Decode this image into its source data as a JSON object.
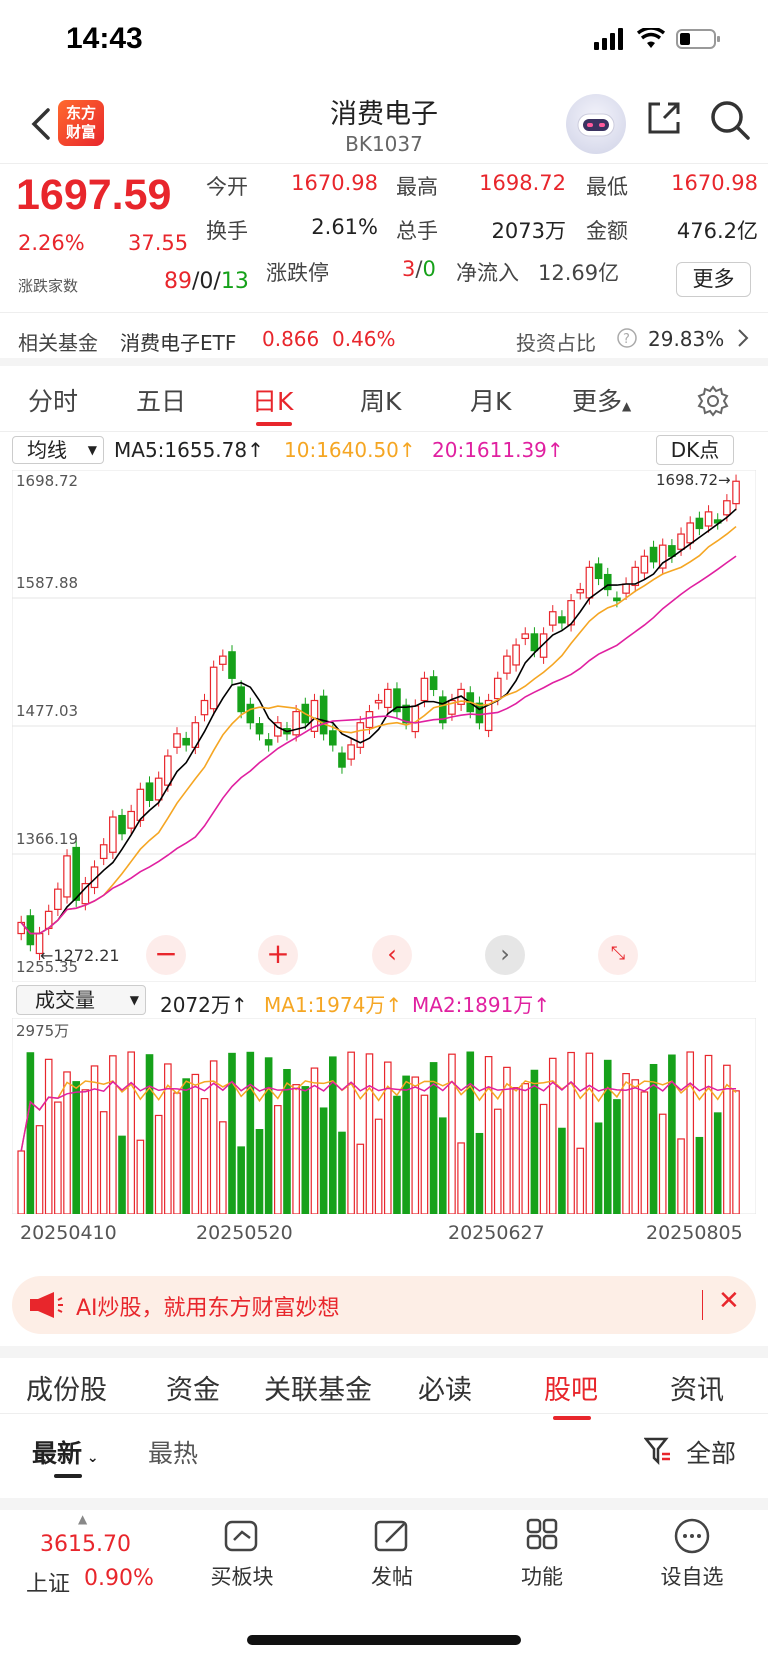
{
  "status": {
    "time": "14:43"
  },
  "nav": {
    "title": "消费电子",
    "code": "BK1037",
    "logo_line1": "东方",
    "logo_line2": "财富"
  },
  "quote": {
    "price": "1697.59",
    "change_pct": "2.26%",
    "change": "37.55",
    "open_label": "今开",
    "open": "1670.98",
    "high_label": "最高",
    "high": "1698.72",
    "low_label": "最低",
    "low": "1670.98",
    "turnover_label": "换手",
    "turnover": "2.61%",
    "volume_label": "总手",
    "volume": "2073万",
    "amount_label": "金额",
    "amount": "476.2亿",
    "updown_label": "涨跌家数",
    "up_count": "89",
    "flat_count": "0",
    "down_count": "13",
    "limit_label": "涨跌停",
    "limit_up": "3",
    "limit_down": "0",
    "inflow_label": "净流入",
    "inflow": "12.69亿",
    "more": "更多"
  },
  "fund": {
    "label": "相关基金",
    "name": "消费电子ETF",
    "price": "0.866",
    "pct": "0.46%",
    "ratio_label": "投资占比",
    "ratio": "29.83%"
  },
  "tabs": [
    "分时",
    "五日",
    "日K",
    "周K",
    "月K",
    "更多"
  ],
  "ma": {
    "select": "均线",
    "ma5": "MA5:1655.78",
    "ma10": "10:1640.50",
    "ma20": "20:1611.39",
    "dk": "DK点"
  },
  "chart_axis": {
    "y1": "1698.72",
    "y2": "1587.88",
    "y3": "1477.03",
    "y4": "1366.19",
    "y5": "1255.35",
    "max_label": "1698.72",
    "min_label": "1272.21"
  },
  "vol": {
    "select": "成交量",
    "value": "2072万",
    "ma1": "MA1:1974万",
    "ma2": "MA2:1891万",
    "max_label": "2975万"
  },
  "dates": [
    "20250410",
    "20250520",
    "20250627",
    "20250805"
  ],
  "colors": {
    "up": "#e8262c",
    "down": "#16a11a",
    "ma5": "#000000",
    "ma10": "#f5a623",
    "ma20": "#e020a0"
  },
  "chart_data": {
    "type": "candlestick",
    "ylim": [
      1255.35,
      1698.72
    ],
    "x_ticks": [
      "20250410",
      "20250520",
      "20250627",
      "20250805"
    ],
    "close": [
      1300,
      1280,
      1290,
      1310,
      1330,
      1360,
      1320,
      1335,
      1350,
      1370,
      1395,
      1380,
      1400,
      1420,
      1410,
      1430,
      1450,
      1470,
      1460,
      1480,
      1500,
      1530,
      1540,
      1520,
      1490,
      1480,
      1470,
      1460,
      1480,
      1470,
      1490,
      1480,
      1500,
      1470,
      1460,
      1440,
      1460,
      1480,
      1490,
      1500,
      1510,
      1490,
      1480,
      1495,
      1520,
      1510,
      1480,
      1500,
      1510,
      1490,
      1480,
      1500,
      1520,
      1540,
      1550,
      1560,
      1545,
      1560,
      1580,
      1570,
      1590,
      1600,
      1620,
      1610,
      1600,
      1590,
      1605,
      1620,
      1630,
      1625,
      1640,
      1630,
      1650,
      1660,
      1655,
      1670,
      1660,
      1680,
      1697.59
    ],
    "volume_max_label": "2975万"
  },
  "ad": {
    "text": "AI炒股，就用东方财富妙想"
  },
  "sub_tabs": [
    "成份股",
    "资金",
    "关联基金",
    "必读",
    "股吧",
    "资讯"
  ],
  "sort": {
    "latest": "最新",
    "hot": "最热",
    "filter": "全部"
  },
  "bottom": {
    "index_value": "3615.70",
    "index_name": "上证",
    "index_pct": "0.90%",
    "buy": "买板块",
    "post": "发帖",
    "func": "功能",
    "fav": "设自选"
  }
}
